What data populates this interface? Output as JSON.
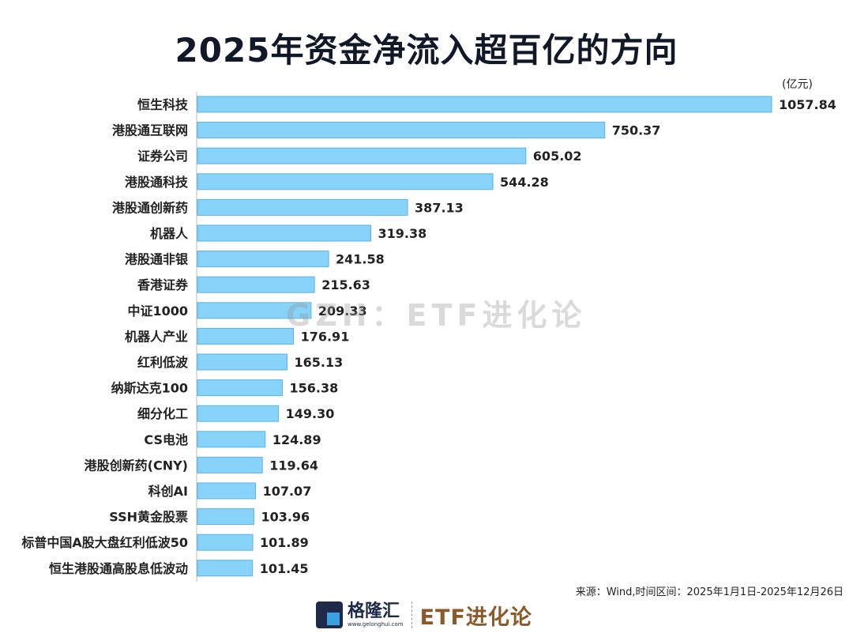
{
  "chart_data": {
    "type": "bar",
    "orientation": "horizontal",
    "title": "2025年资金净流入超百亿的方向",
    "unit": "(亿元)",
    "categories": [
      "恒生科技",
      "港股通互联网",
      "证券公司",
      "港股通科技",
      "港股通创新药",
      "机器人",
      "港股通非银",
      "香港证券",
      "中证1000",
      "机器人产业",
      "红利低波",
      "纳斯达克100",
      "细分化工",
      "CS电池",
      "港股创新药(CNY)",
      "科创AI",
      "SSH黄金股票",
      "标普中国A股大盘红利低波50",
      "恒生港股通高股息低波动"
    ],
    "values": [
      1057.84,
      750.37,
      605.02,
      544.28,
      387.13,
      319.38,
      241.58,
      215.63,
      209.33,
      176.91,
      165.13,
      156.38,
      149.3,
      124.89,
      119.64,
      107.07,
      103.96,
      101.89,
      101.45
    ],
    "labels": [
      "1057.84",
      "750.37",
      "605.02",
      "544.28",
      "387.13",
      "319.38",
      "241.58",
      "215.63",
      "209.33",
      "176.91",
      "165.13",
      "156.38",
      "149.30",
      "124.89",
      "119.64",
      "107.07",
      "103.96",
      "101.89",
      "101.45"
    ],
    "xlim": [
      0,
      1057.84
    ],
    "grid": false,
    "colors": {
      "bar_fill": "#87d3fa",
      "bar_stroke": "#5ab2e6"
    }
  },
  "source": "来源：Wind,时间区间：2025年1月1日-2025年12月26日",
  "footer": {
    "brand": "格隆汇",
    "brand_url": "www.gelonghui.com",
    "column": "ETF进化论"
  },
  "watermark": "GZH：ETF进化论"
}
